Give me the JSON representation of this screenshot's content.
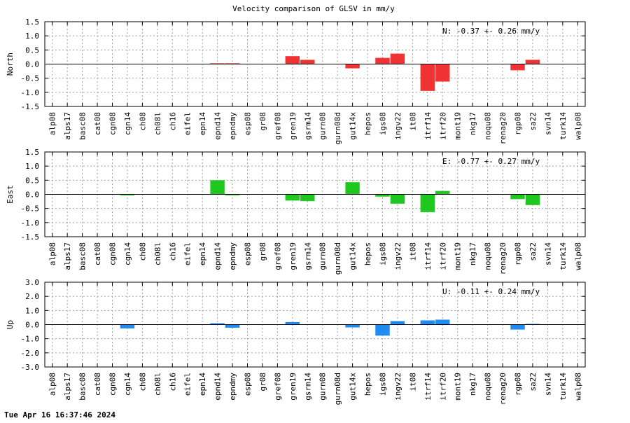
{
  "chart_data": {
    "title": "Velocity comparison of GLSV in mm/y",
    "categories": [
      "alp08",
      "alps17",
      "basc08",
      "cat08",
      "cgn08",
      "cgn14",
      "ch08",
      "ch08l",
      "ch16",
      "eifel",
      "epn14",
      "epnd14",
      "epndmy",
      "esp08",
      "gr08",
      "gref08",
      "gren19",
      "gsrm14",
      "gurn08",
      "gurn08d",
      "gut14x",
      "hepos",
      "igs08",
      "ingv22",
      "it08",
      "itrf14",
      "itrf20",
      "mont19",
      "nkg17",
      "noqu08",
      "renag20",
      "rgp08",
      "sa22",
      "svn14",
      "turk14",
      "walp08"
    ],
    "panels": [
      {
        "type": "bar",
        "name": "north",
        "ylabel": "North",
        "color": "#f03232",
        "ylim": [
          -1.5,
          1.5
        ],
        "yticks": [
          -1.5,
          -1.0,
          -0.5,
          0.0,
          0.5,
          1.0,
          1.5
        ],
        "ytick_labels": [
          "-1.5",
          "-1.0",
          "-0.5",
          "0.0",
          "0.5",
          "1.0",
          "1.5"
        ],
        "annotation": "N:  -0.37 +-  0.26 mm/y",
        "values": [
          null,
          null,
          null,
          null,
          null,
          null,
          null,
          null,
          null,
          null,
          null,
          0.03,
          0.03,
          null,
          null,
          null,
          0.28,
          0.15,
          null,
          null,
          -0.15,
          null,
          0.22,
          0.37,
          null,
          -0.95,
          -0.62,
          null,
          null,
          null,
          null,
          -0.22,
          0.15,
          null,
          null,
          null
        ]
      },
      {
        "type": "bar",
        "name": "east",
        "ylabel": "East",
        "color": "#1ec81e",
        "ylim": [
          -1.5,
          1.5
        ],
        "yticks": [
          -1.5,
          -1.0,
          -0.5,
          0.0,
          0.5,
          1.0,
          1.5
        ],
        "ytick_labels": [
          "-1.5",
          "-1.0",
          "-0.5",
          "0.0",
          "0.5",
          "1.0",
          "1.5"
        ],
        "annotation": "E:  -0.77 +-  0.27 mm/y",
        "values": [
          null,
          null,
          null,
          null,
          null,
          -0.02,
          null,
          null,
          null,
          null,
          null,
          0.5,
          -0.02,
          null,
          null,
          null,
          -0.22,
          -0.24,
          null,
          null,
          0.43,
          null,
          -0.08,
          -0.33,
          null,
          -0.63,
          0.12,
          null,
          null,
          null,
          null,
          -0.17,
          -0.38,
          null,
          null,
          null
        ]
      },
      {
        "type": "bar",
        "name": "up",
        "ylabel": "Up",
        "color": "#1e8cf0",
        "ylim": [
          -3.0,
          3.0
        ],
        "yticks": [
          -3.0,
          -2.0,
          -1.0,
          0.0,
          1.0,
          2.0,
          3.0
        ],
        "ytick_labels": [
          "-3.0",
          "-2.0",
          "-1.0",
          "0.0",
          "1.0",
          "2.0",
          "3.0"
        ],
        "annotation": "U:  -0.11 +-  0.24 mm/y",
        "values": [
          null,
          null,
          null,
          null,
          null,
          -0.27,
          null,
          null,
          null,
          null,
          null,
          0.1,
          -0.22,
          null,
          null,
          null,
          0.18,
          null,
          null,
          null,
          -0.2,
          null,
          -0.78,
          0.25,
          null,
          0.3,
          0.35,
          null,
          null,
          null,
          null,
          -0.35,
          0.05,
          null,
          null,
          null
        ]
      }
    ],
    "grid": true,
    "footer": "Tue Apr 16 16:37:46 2024"
  }
}
